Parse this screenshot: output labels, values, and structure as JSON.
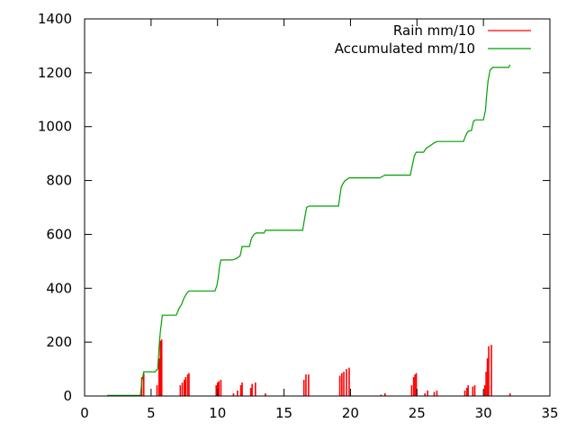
{
  "chart_data": {
    "type": "line",
    "title": "",
    "xlabel": "",
    "ylabel": "",
    "xlim": [
      0,
      35
    ],
    "ylim": [
      0,
      1400
    ],
    "x_ticks": [
      0,
      5,
      10,
      15,
      20,
      25,
      30,
      35
    ],
    "y_ticks": [
      0,
      200,
      400,
      600,
      800,
      1000,
      1200,
      1400
    ],
    "grid": false,
    "legend_position": "top-right",
    "series": [
      {
        "name": "Rain mm/10",
        "style": "impulses",
        "color": "#ff0000",
        "points": [
          [
            4.3,
            70
          ],
          [
            4.45,
            85
          ],
          [
            5.45,
            40
          ],
          [
            5.6,
            140
          ],
          [
            5.7,
            205
          ],
          [
            5.8,
            210
          ],
          [
            7.2,
            40
          ],
          [
            7.35,
            50
          ],
          [
            7.5,
            60
          ],
          [
            7.6,
            70
          ],
          [
            7.75,
            80
          ],
          [
            7.85,
            85
          ],
          [
            9.9,
            40
          ],
          [
            10.0,
            50
          ],
          [
            10.1,
            55
          ],
          [
            10.25,
            60
          ],
          [
            11.2,
            10
          ],
          [
            11.5,
            20
          ],
          [
            11.75,
            40
          ],
          [
            11.85,
            50
          ],
          [
            12.5,
            30
          ],
          [
            12.6,
            45
          ],
          [
            12.85,
            50
          ],
          [
            13.6,
            10
          ],
          [
            16.5,
            60
          ],
          [
            16.65,
            80
          ],
          [
            16.85,
            80
          ],
          [
            19.2,
            75
          ],
          [
            19.35,
            85
          ],
          [
            19.5,
            90
          ],
          [
            19.7,
            100
          ],
          [
            19.9,
            105
          ],
          [
            22.3,
            5
          ],
          [
            22.6,
            10
          ],
          [
            24.6,
            40
          ],
          [
            24.75,
            70
          ],
          [
            24.85,
            80
          ],
          [
            24.95,
            85
          ],
          [
            25.6,
            10
          ],
          [
            25.8,
            20
          ],
          [
            26.3,
            15
          ],
          [
            26.5,
            20
          ],
          [
            28.6,
            20
          ],
          [
            28.75,
            30
          ],
          [
            28.85,
            40
          ],
          [
            29.2,
            35
          ],
          [
            29.35,
            40
          ],
          [
            30.1,
            40
          ],
          [
            30.2,
            90
          ],
          [
            30.3,
            140
          ],
          [
            30.4,
            185
          ],
          [
            30.6,
            190
          ],
          [
            32.0,
            10
          ]
        ]
      },
      {
        "name": "Accumulated mm/10",
        "style": "steps",
        "color": "#00a000",
        "points": [
          [
            1.7,
            2
          ],
          [
            4.2,
            2
          ],
          [
            4.3,
            50
          ],
          [
            4.45,
            90
          ],
          [
            5.3,
            90
          ],
          [
            5.5,
            100
          ],
          [
            5.6,
            180
          ],
          [
            5.7,
            240
          ],
          [
            5.85,
            300
          ],
          [
            6.9,
            300
          ],
          [
            7.1,
            325
          ],
          [
            7.3,
            340
          ],
          [
            7.45,
            360
          ],
          [
            7.6,
            375
          ],
          [
            7.75,
            385
          ],
          [
            7.85,
            390
          ],
          [
            9.8,
            390
          ],
          [
            9.95,
            410
          ],
          [
            10.05,
            440
          ],
          [
            10.15,
            480
          ],
          [
            10.25,
            505
          ],
          [
            11.1,
            505
          ],
          [
            11.4,
            510
          ],
          [
            11.7,
            520
          ],
          [
            11.85,
            555
          ],
          [
            12.4,
            555
          ],
          [
            12.55,
            585
          ],
          [
            12.75,
            600
          ],
          [
            12.9,
            605
          ],
          [
            13.5,
            605
          ],
          [
            13.6,
            615
          ],
          [
            16.4,
            615
          ],
          [
            16.55,
            660
          ],
          [
            16.7,
            700
          ],
          [
            16.9,
            705
          ],
          [
            19.1,
            705
          ],
          [
            19.2,
            740
          ],
          [
            19.3,
            775
          ],
          [
            19.45,
            790
          ],
          [
            19.6,
            800
          ],
          [
            19.9,
            810
          ],
          [
            22.2,
            810
          ],
          [
            22.4,
            815
          ],
          [
            22.6,
            820
          ],
          [
            24.5,
            820
          ],
          [
            24.65,
            855
          ],
          [
            24.8,
            890
          ],
          [
            24.95,
            905
          ],
          [
            25.5,
            905
          ],
          [
            25.7,
            920
          ],
          [
            26.0,
            930
          ],
          [
            26.3,
            940
          ],
          [
            26.5,
            945
          ],
          [
            28.5,
            945
          ],
          [
            28.65,
            965
          ],
          [
            28.8,
            980
          ],
          [
            28.95,
            985
          ],
          [
            29.1,
            985
          ],
          [
            29.25,
            1020
          ],
          [
            29.4,
            1025
          ],
          [
            30.0,
            1025
          ],
          [
            30.15,
            1060
          ],
          [
            30.25,
            1120
          ],
          [
            30.35,
            1170
          ],
          [
            30.5,
            1210
          ],
          [
            30.7,
            1220
          ],
          [
            31.9,
            1220
          ],
          [
            32.0,
            1230
          ]
        ]
      }
    ]
  }
}
